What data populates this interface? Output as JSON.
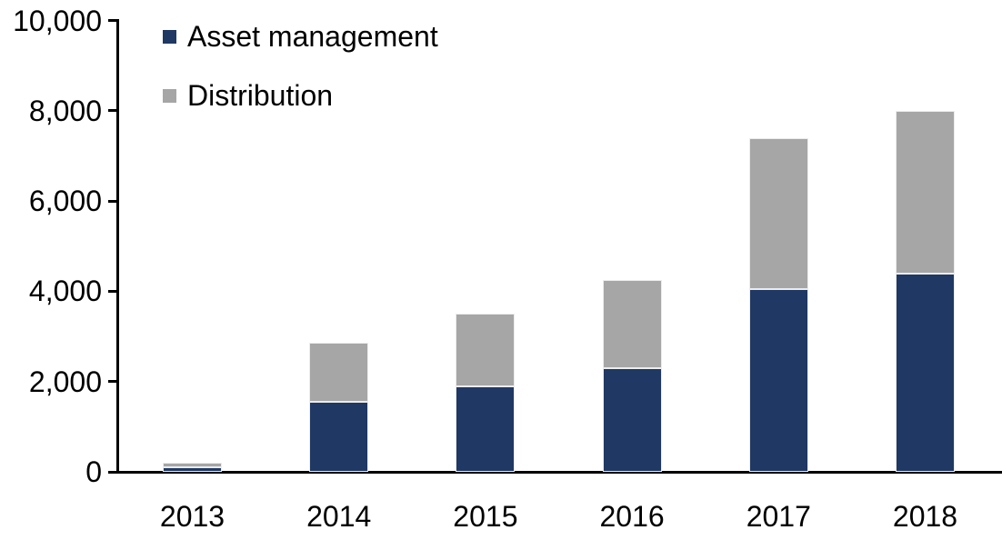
{
  "chart_data": {
    "type": "bar",
    "stacked": true,
    "title": "",
    "categories": [
      "2013",
      "2014",
      "2015",
      "2016",
      "2017",
      "2018"
    ],
    "series": [
      {
        "name": "Asset management",
        "color": "#1F3864",
        "values": [
          100,
          1550,
          1900,
          2300,
          4050,
          4400
        ]
      },
      {
        "name": "Distribution",
        "color": "#A6A6A6",
        "values": [
          100,
          1300,
          1600,
          1950,
          3350,
          3600
        ]
      }
    ],
    "totals": [
      200,
      2850,
      3500,
      4250,
      7400,
      8000
    ],
    "ylim": [
      0,
      10000
    ],
    "ytick_interval": 2000,
    "ytick_values": [
      0,
      2000,
      4000,
      6000,
      8000,
      10000
    ],
    "ytick_labels": [
      "0",
      "2,000",
      "4,000",
      "6,000",
      "8,000",
      "10,000"
    ],
    "xlabel": "",
    "ylabel": "",
    "grid": false,
    "legend_position": "top-left",
    "axis_color": "#000000",
    "background_color": "#FFFFFF"
  }
}
